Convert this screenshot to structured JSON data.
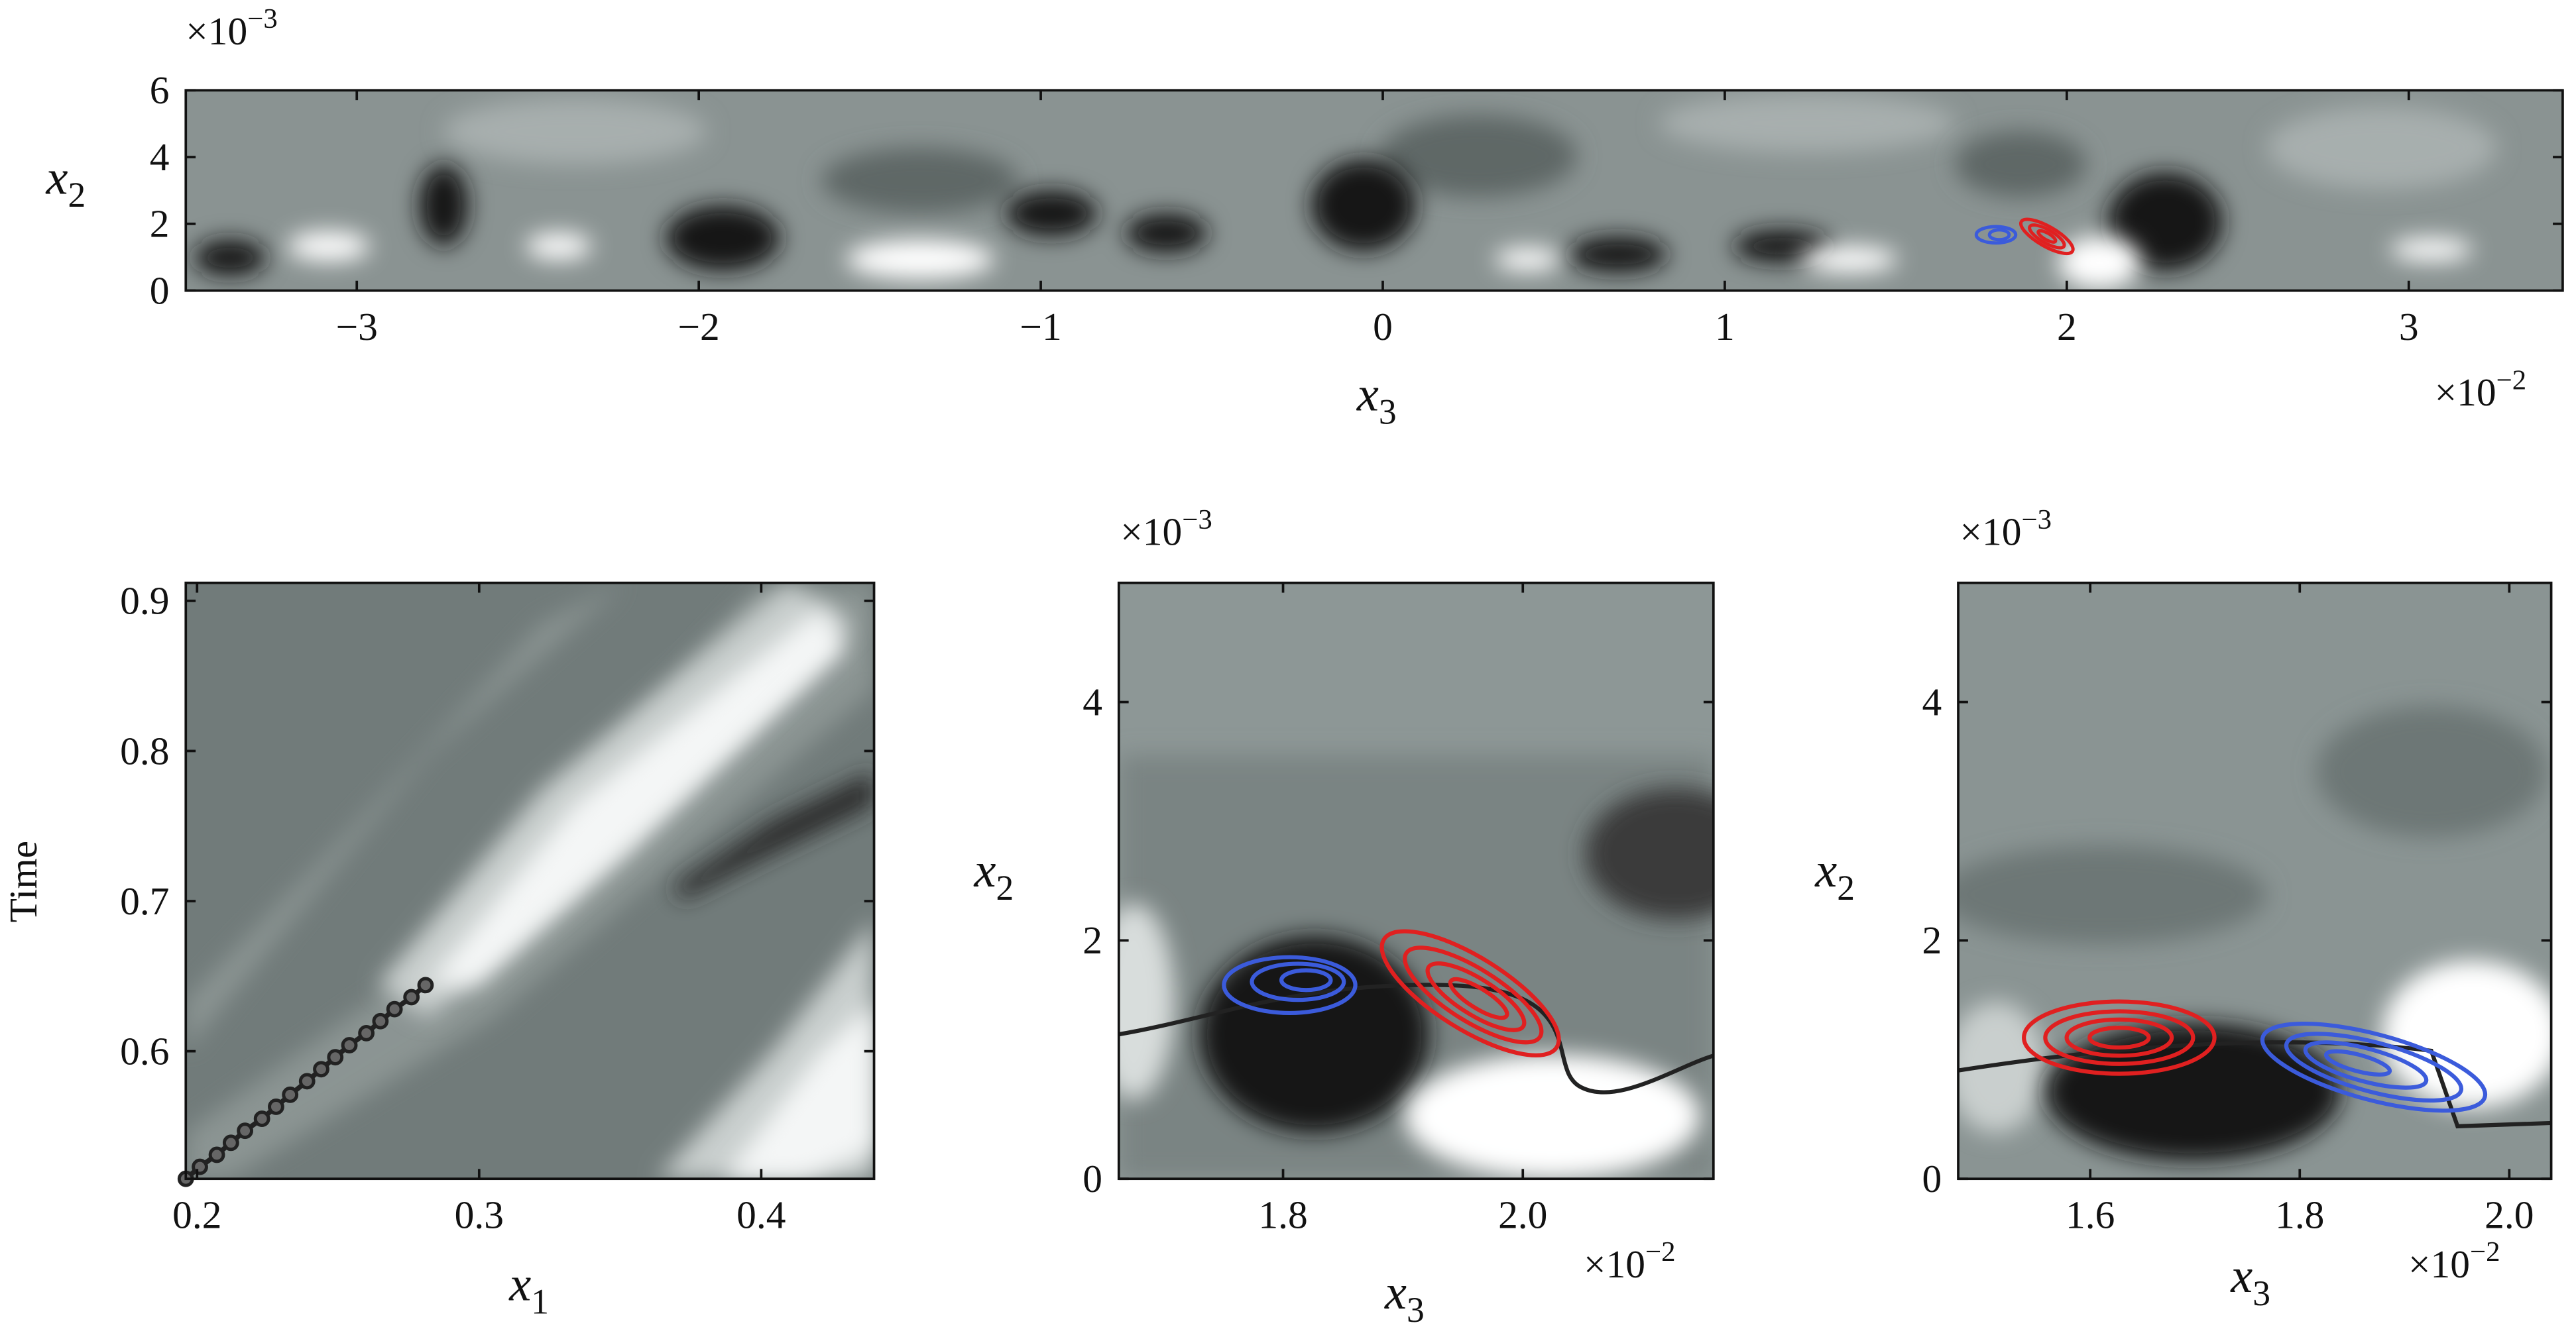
{
  "chart_data": [
    {
      "type": "contour",
      "xlabel": {
        "symbol": "x",
        "subscript": "3"
      },
      "ylabel": {
        "symbol": "x",
        "subscript": "2"
      },
      "x_multiplier": {
        "base": "×10",
        "exponent": "−2"
      },
      "y_multiplier": {
        "base": "×10",
        "exponent": "−3"
      },
      "xlim": [
        -3.5,
        3.45
      ],
      "ylim": [
        0,
        6
      ],
      "xticks": [
        {
          "value": -3,
          "label": "−3"
        },
        {
          "value": -2,
          "label": "−2"
        },
        {
          "value": -1,
          "label": "−1"
        },
        0,
        1,
        2,
        3
      ],
      "yticks": [
        0,
        2,
        4,
        6
      ]
    },
    {
      "type": "line",
      "xlabel": {
        "symbol": "x",
        "subscript": "1"
      },
      "ylabel": "Time",
      "xlim": [
        0.196,
        0.44
      ],
      "ylim": [
        0.515,
        0.912
      ],
      "xticks": [
        0.2,
        0.3,
        0.4
      ],
      "yticks": [
        0.6,
        0.7,
        0.8,
        0.9
      ],
      "color": "#222222",
      "x": [
        0.196,
        0.201,
        0.207,
        0.212,
        0.217,
        0.223,
        0.228,
        0.233,
        0.239,
        0.244,
        0.249,
        0.254,
        0.26,
        0.265,
        0.27,
        0.276,
        0.281
      ],
      "values": [
        0.515,
        0.523,
        0.531,
        0.539,
        0.547,
        0.555,
        0.563,
        0.571,
        0.58,
        0.588,
        0.596,
        0.604,
        0.612,
        0.62,
        0.628,
        0.636,
        0.644
      ]
    },
    {
      "type": "contour",
      "xlabel": {
        "symbol": "x",
        "subscript": "3"
      },
      "ylabel": {
        "symbol": "x",
        "subscript": "2"
      },
      "x_multiplier": {
        "base": "×10",
        "exponent": "−2"
      },
      "y_multiplier": {
        "base": "×10",
        "exponent": "−3"
      },
      "xlim": [
        1.663,
        2.159
      ],
      "ylim": [
        0,
        5
      ],
      "xticks": [
        1.8,
        {
          "value": 2,
          "label": "2.0"
        }
      ],
      "yticks": [
        0,
        2,
        4
      ]
    },
    {
      "type": "contour",
      "xlabel": {
        "symbol": "x",
        "subscript": "3"
      },
      "ylabel": {
        "symbol": "x",
        "subscript": "2"
      },
      "x_multiplier": {
        "base": "×10",
        "exponent": "−2"
      },
      "y_multiplier": {
        "base": "×10",
        "exponent": "−3"
      },
      "xlim": [
        1.474,
        2.04
      ],
      "ylim": [
        0,
        5
      ],
      "xticks": [
        1.6,
        1.8,
        {
          "value": 2,
          "label": "2.0"
        }
      ],
      "yticks": [
        0,
        2,
        4
      ]
    }
  ]
}
